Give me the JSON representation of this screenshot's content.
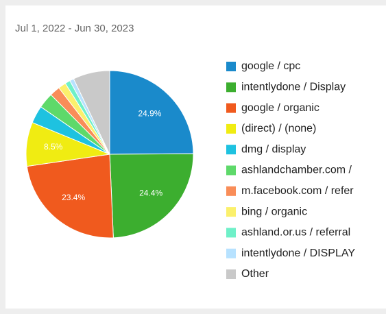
{
  "chart_data": {
    "type": "pie",
    "title": "Jul 1, 2022 - Jun 30, 2023",
    "categories": [
      "google / cpc",
      "intentlydone / Display",
      "google / organic",
      "(direct) / (none)",
      "dmg / display",
      "ashlandchamber.com /",
      "m.facebook.com / refer",
      "bing / organic",
      "ashland.or.us / referral",
      "intentlydone / DISPLAY",
      "Other"
    ],
    "values": [
      24.9,
      24.4,
      23.4,
      8.5,
      3.4,
      3.0,
      2.0,
      1.5,
      1.0,
      0.8,
      7.1
    ],
    "value_labels": [
      "24.9%",
      "24.4%",
      "23.4%",
      "8.5%",
      null,
      null,
      null,
      null,
      null,
      null,
      null
    ],
    "colors": [
      "#1a8acb",
      "#3cae2f",
      "#f05a1e",
      "#f0ec12",
      "#1ec2e0",
      "#5ed96a",
      "#f98d58",
      "#fbf06c",
      "#6ff0c8",
      "#b7e2ff",
      "#c9c9c9"
    ],
    "legend": "right"
  }
}
